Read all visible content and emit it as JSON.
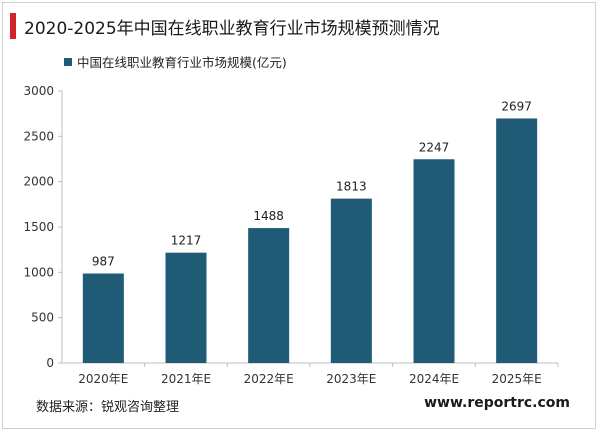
{
  "header": {
    "title": "2020-2025年中国在线职业教育行业市场规模预测情况",
    "accent_color": "#d2232a"
  },
  "footer": {
    "source": "数据来源：锐观咨询整理",
    "site": "www.reportrc.com"
  },
  "chart_data": {
    "type": "bar",
    "title": "2020-2025年中国在线职业教育行业市场规模预测情况",
    "xlabel": "",
    "ylabel": "",
    "categories": [
      "2020年E",
      "2021年E",
      "2022年E",
      "2023年E",
      "2024年E",
      "2025年E"
    ],
    "series": [
      {
        "name": "中国在线职业教育行业市场规模(亿元)",
        "values": [
          987,
          1217,
          1488,
          1813,
          2247,
          2697
        ],
        "color": "#1f5b74"
      }
    ],
    "ylim": [
      0,
      3000
    ],
    "yticks": [
      0,
      500,
      1000,
      1500,
      2000,
      2500,
      3000
    ],
    "grid": false,
    "legend_position": "top-left"
  }
}
